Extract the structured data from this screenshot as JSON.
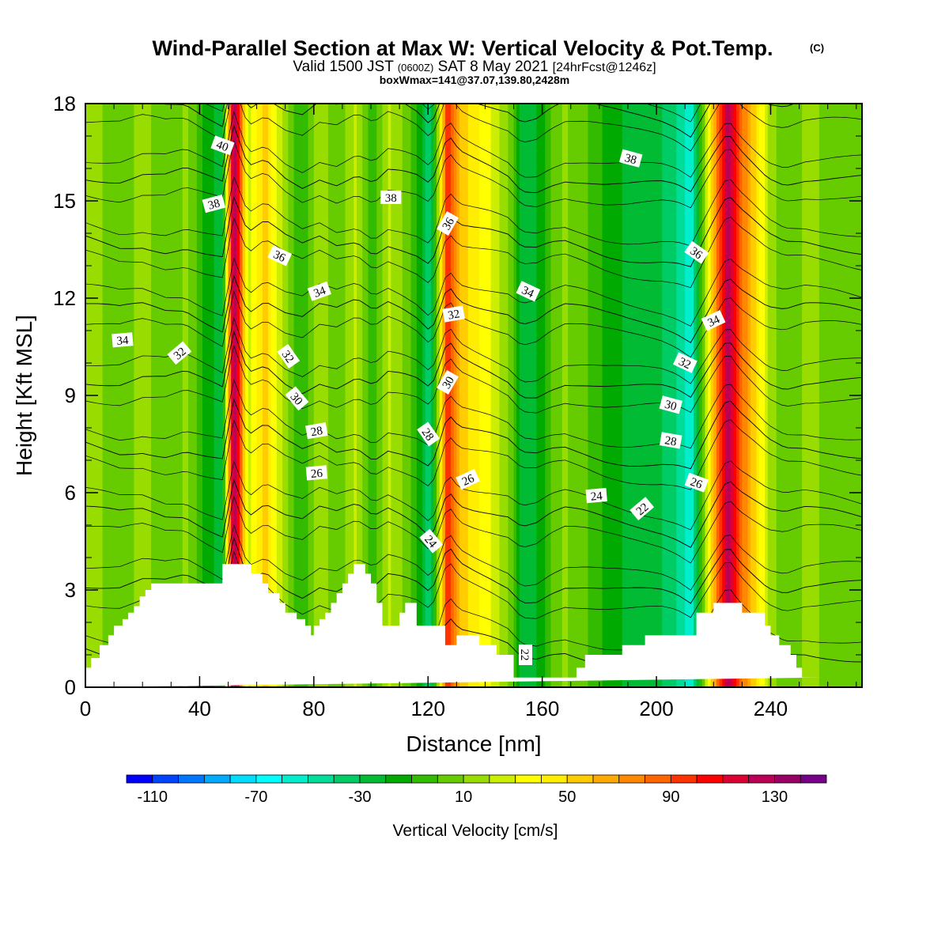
{
  "title": {
    "main": "Wind-Parallel Section at Max W: Vertical Velocity & Pot.Temp.",
    "copyright": "(C)",
    "valid_a": "Valid 1500 JST",
    "valid_b": "(0600Z)",
    "valid_c": "SAT 8 May 2021",
    "valid_d": "[24hrFcst@1246z]",
    "box": "boxWmax=141@37.07,139.80,2428m"
  },
  "chart_data": {
    "type": "heatmap",
    "description_fields": "filled contours of vertical velocity with black potential-temperature isolines over terrain",
    "xlabel": "Distance [nm]",
    "ylabel": "Height [Kft MSL]",
    "xlim": [
      0,
      272
    ],
    "ylim": [
      0,
      18
    ],
    "x_ticks": [
      "0",
      "40",
      "80",
      "120",
      "160",
      "200",
      "240"
    ],
    "x_tick_values": [
      0,
      40,
      80,
      120,
      160,
      200,
      240
    ],
    "y_ticks": [
      "0",
      "3",
      "6",
      "9",
      "12",
      "15",
      "18"
    ],
    "y_tick_values": [
      0,
      3,
      6,
      9,
      12,
      15,
      18
    ],
    "colorbar": {
      "label": "Vertical Velocity [cm/s]",
      "min": -120,
      "max": 150,
      "step": 10,
      "tick_labels": [
        "-110",
        "-70",
        "-30",
        "10",
        "50",
        "90",
        "130"
      ],
      "tick_values": [
        -110,
        -70,
        -30,
        10,
        50,
        90,
        130
      ],
      "colors": [
        "#0000ff",
        "#0044ff",
        "#0077ff",
        "#00aaff",
        "#00ddff",
        "#00ffff",
        "#00eecc",
        "#00dd99",
        "#00cc66",
        "#00bb33",
        "#00aa00",
        "#33bb00",
        "#66cc00",
        "#99dd00",
        "#ccee00",
        "#ffff00",
        "#ffee00",
        "#ffcc00",
        "#ffaa00",
        "#ff8800",
        "#ff6600",
        "#ff3300",
        "#ff0000",
        "#dd0033",
        "#bb0055",
        "#990066",
        "#770088"
      ]
    },
    "w_features": [
      {
        "x": 0,
        "w": 18
      },
      {
        "x": 12,
        "w": 2
      },
      {
        "x": 20,
        "w": 14
      },
      {
        "x": 28,
        "w": 2
      },
      {
        "x": 35,
        "w": 12
      },
      {
        "x": 42,
        "w": -12
      },
      {
        "x": 48,
        "w": -30
      },
      {
        "x": 52,
        "w": 135
      },
      {
        "x": 57,
        "w": 25
      },
      {
        "x": 63,
        "w": 55
      },
      {
        "x": 70,
        "w": 12
      },
      {
        "x": 76,
        "w": -10
      },
      {
        "x": 82,
        "w": 18
      },
      {
        "x": 88,
        "w": 0
      },
      {
        "x": 95,
        "w": 22
      },
      {
        "x": 101,
        "w": -8
      },
      {
        "x": 106,
        "w": 22
      },
      {
        "x": 111,
        "w": 10
      },
      {
        "x": 116,
        "w": -8
      },
      {
        "x": 121,
        "w": -40
      },
      {
        "x": 124,
        "w": 28
      },
      {
        "x": 127,
        "w": 105
      },
      {
        "x": 131,
        "w": 60
      },
      {
        "x": 136,
        "w": 45
      },
      {
        "x": 142,
        "w": 30
      },
      {
        "x": 148,
        "w": 12
      },
      {
        "x": 153,
        "w": -25
      },
      {
        "x": 158,
        "w": -22
      },
      {
        "x": 163,
        "w": 0
      },
      {
        "x": 168,
        "w": 12
      },
      {
        "x": 175,
        "w": 2
      },
      {
        "x": 182,
        "w": -12
      },
      {
        "x": 190,
        "w": -22
      },
      {
        "x": 196,
        "w": -26
      },
      {
        "x": 202,
        "w": -30
      },
      {
        "x": 207,
        "w": -40
      },
      {
        "x": 212,
        "w": -60
      },
      {
        "x": 217,
        "w": 15
      },
      {
        "x": 221,
        "w": 75
      },
      {
        "x": 225,
        "w": 130
      },
      {
        "x": 229,
        "w": 90
      },
      {
        "x": 234,
        "w": 55
      },
      {
        "x": 239,
        "w": 20
      },
      {
        "x": 245,
        "w": 2
      },
      {
        "x": 252,
        "w": 12
      },
      {
        "x": 262,
        "w": 8
      },
      {
        "x": 272,
        "w": 0
      }
    ],
    "terrain": {
      "x": [
        0,
        2,
        2,
        5,
        5,
        8,
        8,
        10,
        10,
        13,
        13,
        15,
        15,
        17,
        17,
        19,
        19,
        21,
        21,
        23,
        23,
        48,
        48,
        58,
        58,
        62,
        62,
        64,
        64,
        68,
        68,
        70,
        70,
        74,
        74,
        77,
        77,
        79,
        79,
        80,
        80,
        82,
        82,
        84,
        84,
        86,
        86,
        88,
        88,
        90,
        90,
        92,
        92,
        94,
        94,
        98,
        98,
        100,
        100,
        102,
        102,
        104,
        104,
        110,
        110,
        112,
        112,
        116,
        116,
        126,
        126,
        130,
        130,
        138,
        138,
        144,
        144,
        150,
        150,
        152,
        152,
        172,
        172,
        175,
        175,
        188,
        188,
        196,
        196,
        214,
        214,
        220,
        220,
        230,
        230,
        238,
        238,
        240,
        240,
        243,
        243,
        247,
        247,
        249,
        249,
        251,
        251,
        254,
        254,
        258,
        258,
        272
      ],
      "h": [
        0.6,
        0.6,
        0.9,
        0.9,
        1.3,
        1.3,
        1.6,
        1.6,
        1.9,
        1.9,
        2.1,
        2.1,
        2.3,
        2.3,
        2.5,
        2.5,
        2.8,
        2.8,
        3.0,
        3.0,
        3.2,
        3.2,
        3.8,
        3.8,
        3.5,
        3.5,
        3.2,
        3.2,
        2.9,
        2.9,
        2.6,
        2.6,
        2.3,
        2.3,
        2.1,
        2.1,
        1.9,
        1.9,
        1.6,
        1.6,
        1.9,
        1.9,
        2.1,
        2.1,
        2.3,
        2.3,
        2.6,
        2.6,
        2.9,
        2.9,
        3.2,
        3.2,
        3.5,
        3.5,
        3.8,
        3.8,
        3.5,
        3.5,
        3.2,
        3.2,
        2.6,
        2.6,
        1.9,
        1.9,
        2.3,
        2.3,
        2.6,
        2.6,
        1.9,
        1.9,
        1.3,
        1.3,
        1.6,
        1.6,
        1.3,
        1.3,
        1.0,
        1.0,
        0.3,
        0.3,
        0.3,
        0.3,
        0.6,
        0.6,
        1.0,
        1.0,
        1.3,
        1.3,
        1.6,
        1.6,
        2.3,
        2.3,
        2.6,
        2.6,
        2.3,
        2.3,
        1.9,
        1.9,
        1.6,
        1.6,
        1.3,
        1.3,
        1.0,
        1.0,
        0.6,
        0.6,
        0.3,
        0.3,
        0.3,
        0.3
      ]
    },
    "theta_levels": [
      22,
      24,
      26,
      28,
      30,
      32,
      34,
      36,
      38,
      40
    ],
    "theta_labels": [
      {
        "text": "40",
        "x": 48,
        "h": 16.7,
        "rot": 20
      },
      {
        "text": "38",
        "x": 45,
        "h": 14.9,
        "rot": -15
      },
      {
        "text": "36",
        "x": 68,
        "h": 13.3,
        "rot": 25
      },
      {
        "text": "34",
        "x": 82,
        "h": 12.2,
        "rot": -20
      },
      {
        "text": "34",
        "x": 13,
        "h": 10.7,
        "rot": -5
      },
      {
        "text": "32",
        "x": 33,
        "h": 10.3,
        "rot": -40
      },
      {
        "text": "32",
        "x": 71,
        "h": 10.2,
        "rot": 55
      },
      {
        "text": "30",
        "x": 74,
        "h": 8.9,
        "rot": 50
      },
      {
        "text": "28",
        "x": 81,
        "h": 7.9,
        "rot": -10
      },
      {
        "text": "26",
        "x": 81,
        "h": 6.6,
        "rot": -5
      },
      {
        "text": "38",
        "x": 107,
        "h": 15.1,
        "rot": 0
      },
      {
        "text": "36",
        "x": 127,
        "h": 14.3,
        "rot": -60
      },
      {
        "text": "34",
        "x": 155,
        "h": 12.2,
        "rot": 25
      },
      {
        "text": "32",
        "x": 129,
        "h": 11.5,
        "rot": -10
      },
      {
        "text": "30",
        "x": 127,
        "h": 9.4,
        "rot": -60
      },
      {
        "text": "28",
        "x": 120,
        "h": 7.8,
        "rot": 55
      },
      {
        "text": "26",
        "x": 134,
        "h": 6.4,
        "rot": -25
      },
      {
        "text": "24",
        "x": 121,
        "h": 4.5,
        "rot": 50
      },
      {
        "text": "22",
        "x": 154,
        "h": 1.0,
        "rot": 90
      },
      {
        "text": "38",
        "x": 191,
        "h": 16.3,
        "rot": 15
      },
      {
        "text": "36",
        "x": 214,
        "h": 13.4,
        "rot": 35
      },
      {
        "text": "34",
        "x": 220,
        "h": 11.3,
        "rot": -25
      },
      {
        "text": "32",
        "x": 210,
        "h": 10.0,
        "rot": 25
      },
      {
        "text": "30",
        "x": 205,
        "h": 8.7,
        "rot": 15
      },
      {
        "text": "28",
        "x": 205,
        "h": 7.6,
        "rot": 10
      },
      {
        "text": "26",
        "x": 214,
        "h": 6.3,
        "rot": 20
      },
      {
        "text": "24",
        "x": 179,
        "h": 5.9,
        "rot": -5
      },
      {
        "text": "22",
        "x": 195,
        "h": 5.5,
        "rot": -40
      }
    ]
  }
}
